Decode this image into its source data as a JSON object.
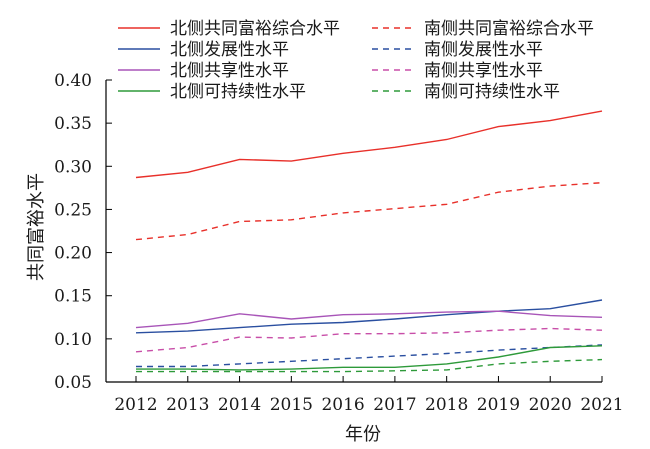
{
  "chart_data": {
    "type": "line",
    "title": "",
    "xlabel": "年份",
    "ylabel": "共同富裕水平",
    "ylim": [
      0.05,
      0.4
    ],
    "yticks": [
      "0.05",
      "0.10",
      "0.15",
      "0.20",
      "0.25",
      "0.30",
      "0.35",
      "0.40"
    ],
    "x": [
      "2012",
      "2013",
      "2014",
      "2015",
      "2016",
      "2017",
      "2018",
      "2019",
      "2020",
      "2021"
    ],
    "grid": false,
    "legend_position": "top",
    "series": [
      {
        "name": "北侧共同富裕综合水平",
        "color": "#e8302a",
        "dash": "solid",
        "values": [
          0.287,
          0.293,
          0.308,
          0.306,
          0.315,
          0.322,
          0.331,
          0.346,
          0.353,
          0.364
        ]
      },
      {
        "name": "南侧共同富裕综合水平",
        "color": "#e8302a",
        "dash": "dashed",
        "values": [
          0.215,
          0.221,
          0.236,
          0.238,
          0.246,
          0.251,
          0.256,
          0.27,
          0.277,
          0.281
        ]
      },
      {
        "name": "北侧发展性水平",
        "color": "#2a4fa0",
        "dash": "solid",
        "values": [
          0.107,
          0.109,
          0.113,
          0.117,
          0.119,
          0.123,
          0.128,
          0.132,
          0.135,
          0.145
        ]
      },
      {
        "name": "南侧发展性水平",
        "color": "#2a4fa0",
        "dash": "dashed",
        "values": [
          0.068,
          0.068,
          0.071,
          0.074,
          0.077,
          0.08,
          0.083,
          0.087,
          0.09,
          0.093
        ]
      },
      {
        "name": "北侧共享性水平",
        "color": "#a855b8",
        "dash": "solid",
        "values": [
          0.113,
          0.118,
          0.129,
          0.123,
          0.128,
          0.129,
          0.131,
          0.132,
          0.127,
          0.125
        ]
      },
      {
        "name": "南侧共享性水平",
        "color": "#c84ea8",
        "dash": "dashed",
        "values": [
          0.085,
          0.09,
          0.102,
          0.101,
          0.106,
          0.106,
          0.107,
          0.11,
          0.112,
          0.11
        ]
      },
      {
        "name": "北侧可持续性水平",
        "color": "#2e9a3a",
        "dash": "solid",
        "values": [
          0.065,
          0.065,
          0.064,
          0.065,
          0.067,
          0.067,
          0.071,
          0.079,
          0.09,
          0.092
        ]
      },
      {
        "name": "南侧可持续性水平",
        "color": "#2e9a3a",
        "dash": "dashed",
        "values": [
          0.062,
          0.062,
          0.062,
          0.062,
          0.062,
          0.063,
          0.064,
          0.071,
          0.074,
          0.076
        ]
      }
    ]
  }
}
